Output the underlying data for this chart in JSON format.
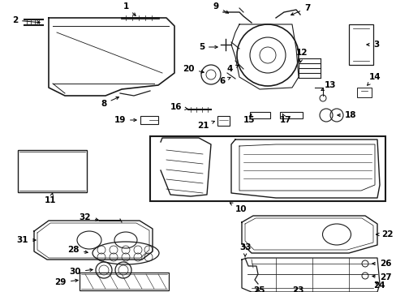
{
  "bg_color": "#ffffff",
  "line_color": "#1a1a1a",
  "fs": 7.5,
  "fw": "bold",
  "figsize": [
    4.89,
    3.6
  ],
  "dpi": 100
}
